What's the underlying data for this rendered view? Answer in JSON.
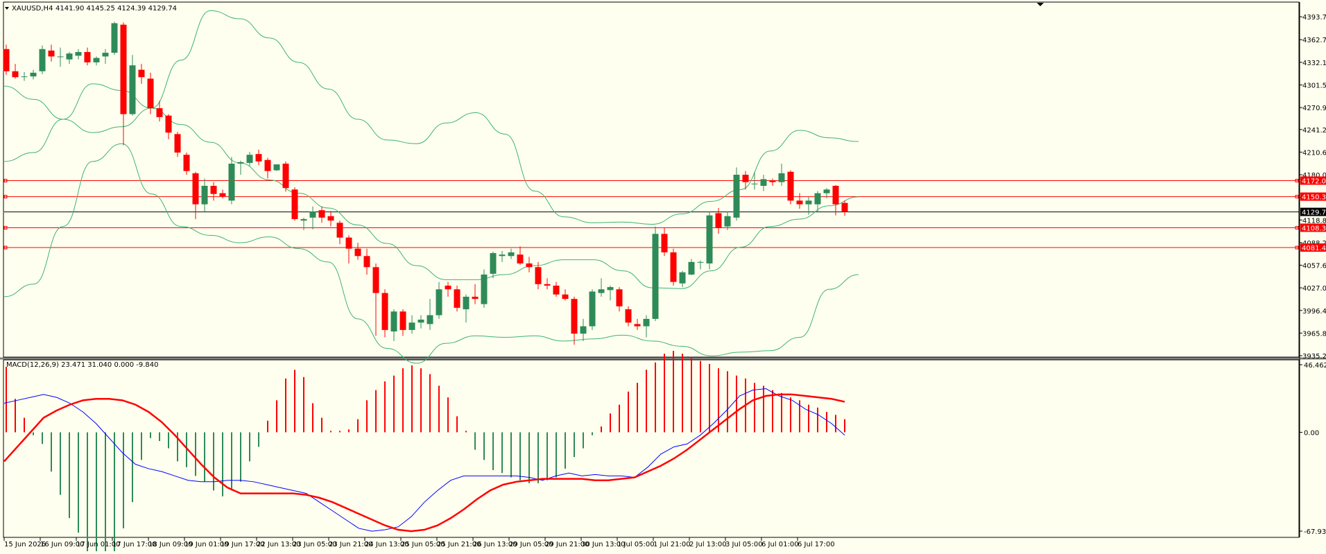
{
  "header": {
    "symbol": "XAUUSD,H4",
    "ohlc": "4141.90 4145.25 4124.39 4129.74",
    "macd_label": "MACD(12,26,9) 23.471 31.040 0.000 -9.840"
  },
  "colors": {
    "background": "#fffff0",
    "bull": "#2e8b57",
    "bear": "#ff0000",
    "bands": "#3cb371",
    "macd_line": "#0000ff",
    "signal_line": "#ff0000",
    "levels": "#ff0000",
    "current_price": "#000000"
  },
  "chart_data": [
    {
      "type": "candlestick",
      "symbol": "XAUUSD",
      "timeframe": "H4",
      "ylim": [
        3935.2,
        4407
      ],
      "y_ticks": [
        "4393.70",
        "4362.70",
        "4332.10",
        "4301.50",
        "4270.90",
        "4241.20",
        "4210.60",
        "4180.00",
        "4149.40",
        "4118.80",
        "4088.20",
        "4057.60",
        "4027.00",
        "3996.40",
        "3965.80",
        "3935.20"
      ],
      "x_ticks": [
        "15 Jun 2026",
        "16 Jun 09:00",
        "17 Jun 01:00",
        "17 Jun 17:00",
        "18 Jun 09:00",
        "19 Jun 01:00",
        "19 Jun 17:00",
        "22 Jun 13:00",
        "23 Jun 05:00",
        "23 Jun 21:00",
        "24 Jun 13:00",
        "25 Jun 05:00",
        "25 Jun 21:00",
        "26 Jun 13:00",
        "29 Jun 05:00",
        "29 Jun 21:00",
        "30 Jun 13:00",
        "1 Jul 05:00",
        "1 Jul 21:00",
        "2 Jul 13:00",
        "3 Jul 05:00",
        "6 Jul 01:00",
        "6 Jul 17:00"
      ],
      "horizontal_levels": [
        {
          "label": "4172.03",
          "value": 4172.03
        },
        {
          "label": "4150.37",
          "value": 4150.37
        },
        {
          "label": "4108.31",
          "value": 4108.31
        },
        {
          "label": "4081.47",
          "value": 4081.47
        }
      ],
      "current_price": {
        "label": "4129.74",
        "value": 4129.74
      },
      "candles": [
        [
          4350,
          4356,
          4315,
          4320
        ],
        [
          4320,
          4330,
          4310,
          4312
        ],
        [
          4313,
          4319,
          4307,
          4313
        ],
        [
          4313,
          4322,
          4309,
          4318
        ],
        [
          4320,
          4355,
          4316,
          4350
        ],
        [
          4348,
          4356,
          4333,
          4340
        ],
        [
          4340,
          4352,
          4326,
          4340
        ],
        [
          4336,
          4346,
          4330,
          4344
        ],
        [
          4341,
          4350,
          4336,
          4346
        ],
        [
          4346,
          4352,
          4328,
          4332
        ],
        [
          4332,
          4340,
          4328,
          4338
        ],
        [
          4340,
          4350,
          4330,
          4345
        ],
        [
          4345,
          4387,
          4342,
          4385
        ],
        [
          4383,
          4386,
          4220,
          4262
        ],
        [
          4262,
          4342,
          4260,
          4328
        ],
        [
          4322,
          4330,
          4303,
          4312
        ],
        [
          4310,
          4318,
          4262,
          4270
        ],
        [
          4270,
          4280,
          4252,
          4258
        ],
        [
          4260,
          4262,
          4228,
          4237
        ],
        [
          4235,
          4238,
          4204,
          4210
        ],
        [
          4207,
          4210,
          4180,
          4185
        ],
        [
          4182,
          4184,
          4120,
          4140
        ],
        [
          4140,
          4175,
          4130,
          4165
        ],
        [
          4165,
          4170,
          4145,
          4154
        ],
        [
          4155,
          4160,
          4148,
          4151
        ],
        [
          4145,
          4204,
          4140,
          4195
        ],
        [
          4195,
          4199,
          4180,
          4197
        ],
        [
          4196,
          4211,
          4192,
          4207
        ],
        [
          4208,
          4214,
          4193,
          4198
        ],
        [
          4200,
          4203,
          4175,
          4185
        ],
        [
          4186,
          4194,
          4185,
          4194
        ],
        [
          4195,
          4198,
          4157,
          4162
        ],
        [
          4160,
          4163,
          4118,
          4120
        ],
        [
          4118,
          4122,
          4105,
          4120
        ],
        [
          4122,
          4137,
          4106,
          4130
        ],
        [
          4132,
          4137,
          4115,
          4122
        ],
        [
          4124,
          4131,
          4110,
          4118
        ],
        [
          4115,
          4118,
          4086,
          4095
        ],
        [
          4095,
          4098,
          4060,
          4080
        ],
        [
          4080,
          4088,
          4065,
          4070
        ],
        [
          4070,
          4080,
          4045,
          4055
        ],
        [
          4055,
          4060,
          3962,
          4020
        ],
        [
          4020,
          4025,
          3960,
          3970
        ],
        [
          3968,
          3998,
          3955,
          3995
        ],
        [
          3995,
          3998,
          3962,
          3970
        ],
        [
          3970,
          3990,
          3965,
          3980
        ],
        [
          3980,
          3990,
          3972,
          3984
        ],
        [
          3978,
          4012,
          3970,
          3990
        ],
        [
          3990,
          4035,
          3985,
          4025
        ],
        [
          4030,
          4035,
          4015,
          4025
        ],
        [
          4025,
          4030,
          3995,
          4000
        ],
        [
          3998,
          4018,
          3980,
          4015
        ],
        [
          4015,
          4032,
          4005,
          4012
        ],
        [
          4005,
          4052,
          4000,
          4045
        ],
        [
          4046,
          4076,
          4040,
          4074
        ],
        [
          4070,
          4077,
          4062,
          4072
        ],
        [
          4070,
          4080,
          4066,
          4075
        ],
        [
          4072,
          4083,
          4058,
          4060
        ],
        [
          4060,
          4069,
          4048,
          4055
        ],
        [
          4055,
          4062,
          4025,
          4032
        ],
        [
          4032,
          4040,
          4025,
          4030
        ],
        [
          4030,
          4035,
          4015,
          4018
        ],
        [
          4018,
          4025,
          4010,
          4012
        ],
        [
          4012,
          4015,
          3950,
          3965
        ],
        [
          3965,
          3985,
          3955,
          3975
        ],
        [
          3975,
          4025,
          3970,
          4022
        ],
        [
          4020,
          4040,
          4015,
          4025
        ],
        [
          4024,
          4030,
          4010,
          4028
        ],
        [
          4025,
          4028,
          3995,
          4002
        ],
        [
          3998,
          4002,
          3975,
          3980
        ],
        [
          3978,
          3985,
          3970,
          3975
        ],
        [
          3975,
          3990,
          3960,
          3985
        ],
        [
          3985,
          4110,
          3982,
          4100
        ],
        [
          4100,
          4108,
          4070,
          4075
        ],
        [
          4075,
          4080,
          4030,
          4035
        ],
        [
          4033,
          4050,
          4028,
          4048
        ],
        [
          4045,
          4066,
          4044,
          4062
        ],
        [
          4062,
          4064,
          4052,
          4062
        ],
        [
          4060,
          4130,
          4052,
          4125
        ],
        [
          4128,
          4135,
          4100,
          4108
        ],
        [
          4110,
          4130,
          4105,
          4124
        ],
        [
          4122,
          4190,
          4118,
          4180
        ],
        [
          4180,
          4185,
          4160,
          4170
        ],
        [
          4168,
          4184,
          4160,
          4168
        ],
        [
          4165,
          4180,
          4158,
          4174
        ],
        [
          4172,
          4175,
          4165,
          4170
        ],
        [
          4170,
          4195,
          4165,
          4182
        ],
        [
          4184,
          4186,
          4140,
          4145
        ],
        [
          4145,
          4155,
          4134,
          4140
        ],
        [
          4140,
          4150,
          4126,
          4145
        ],
        [
          4140,
          4158,
          4130,
          4155
        ],
        [
          4155,
          4162,
          4148,
          4160
        ],
        [
          4165,
          4166,
          4125,
          4140
        ],
        [
          4141.9,
          4145.25,
          4124.39,
          4129.74
        ]
      ],
      "bollinger": {
        "upper": [
          4300,
          4282,
          4255,
          4237,
          4245,
          4270,
          4335,
          4402,
          4391,
          4365,
          4332,
          4296,
          4255,
          4227,
          4222,
          4250,
          4264,
          4235,
          4158,
          4123,
          4115,
          4116,
          4113,
          4127,
          4144,
          4160,
          4212,
          4240,
          4230,
          4225
        ],
        "middle": [
          4198,
          4210,
          4255,
          4303,
          4294,
          4270,
          4248,
          4224,
          4196,
          4173,
          4155,
          4135,
          4112,
          4087,
          4057,
          4038,
          4038,
          4045,
          4057,
          4065,
          4065,
          4050,
          4027,
          4026,
          4050,
          4082,
          4110,
          4120,
          4138,
          4150
        ],
        "lower": [
          4015,
          4032,
          4110,
          4198,
          4222,
          4154,
          4110,
          4098,
          4088,
          4096,
          4080,
          4062,
          3985,
          3945,
          3925,
          3952,
          3962,
          3960,
          3962,
          3955,
          3958,
          3963,
          3955,
          3948,
          3935,
          3940,
          3942,
          3960,
          4025,
          4045
        ]
      }
    },
    {
      "type": "macd",
      "label": "MACD(12,26,9) 23.471 31.040 0.000 -9.840",
      "ylim": [
        -67.933,
        46.462
      ],
      "y_ticks": [
        "46.462",
        "0.00",
        "-67.933"
      ],
      "histogram": [
        45,
        42,
        30,
        23,
        17,
        10,
        5,
        1,
        -2,
        -5,
        -8,
        -12,
        -18,
        -27,
        -37,
        -43,
        -50,
        -55,
        -59,
        -63,
        -69,
        -75,
        -80,
        -85,
        -90,
        -94,
        -95,
        -96,
        -95,
        -92,
        -86,
        -80,
        -73,
        -66,
        -58,
        -48,
        -39,
        -28,
        -19,
        -9,
        -4,
        -2,
        -4,
        -6,
        -8,
        -11,
        -14,
        -17,
        -20,
        -22,
        -24,
        -26,
        -28,
        -30,
        -32,
        -34,
        -36,
        -38,
        -40,
        -42,
        -44,
        -44,
        -42,
        -40,
        -37,
        -34,
        -30,
        -25,
        -20,
        -15,
        -10,
        -5,
        2,
        8,
        15,
        22,
        28,
        33,
        37,
        40,
        42,
        43,
        42,
        38,
        33,
        27,
        20,
        15,
        10,
        5,
        2,
        1,
        1,
        1,
        1,
        1,
        2,
        5,
        9,
        14,
        18,
        22,
        26,
        29,
        31,
        33,
        35,
        37,
        39,
        41,
        43,
        44,
        45,
        46,
        46,
        45,
        44,
        42,
        40,
        38,
        35,
        32,
        28,
        24,
        20,
        16,
        11,
        6,
        1,
        -4,
        -8,
        -12,
        -16,
        -19,
        -22,
        -24,
        -26,
        -27,
        -28,
        -29,
        -30,
        -31,
        -32,
        -33,
        -34,
        -35,
        -35,
        -35,
        -35,
        -35,
        -34,
        -33,
        -32,
        -31,
        -29,
        -27,
        -25,
        -23,
        -20,
        -17,
        -14,
        -11,
        -8,
        -5,
        -2,
        1,
        4,
        7,
        10,
        13,
        16,
        19,
        22,
        25,
        28,
        31,
        34,
        37,
        40,
        43,
        46,
        48,
        50,
        52,
        54,
        55,
        56,
        56,
        55,
        54,
        53,
        52,
        51,
        50,
        49,
        48,
        47,
        46,
        45,
        44,
        43,
        42,
        41,
        40,
        39,
        38,
        37,
        36,
        35,
        34,
        33,
        32,
        31,
        30,
        29,
        28,
        27,
        26,
        25,
        24,
        23,
        22,
        21,
        20,
        19,
        18,
        17,
        16,
        15,
        14,
        13,
        12,
        11,
        10,
        9
      ],
      "macd": [
        20,
        22,
        24,
        26,
        24,
        20,
        14,
        6,
        -4,
        -14,
        -22,
        -25,
        -27,
        -30,
        -33,
        -34,
        -34,
        -33,
        -33,
        -34,
        -36,
        -38,
        -40,
        -42,
        -48,
        -54,
        -60,
        -66,
        -68,
        -67,
        -65,
        -58,
        -48,
        -40,
        -33,
        -30,
        -30,
        -30,
        -30,
        -30,
        -31,
        -33,
        -30,
        -28,
        -30,
        -29,
        -30,
        -30,
        -31,
        -24,
        -15,
        -10,
        -8,
        -2,
        6,
        15,
        25,
        29,
        30,
        25,
        22,
        16,
        12,
        6,
        -2
      ],
      "signal": [
        -20,
        -10,
        0,
        10,
        15,
        19,
        22,
        23,
        23,
        22,
        19,
        14,
        7,
        -2,
        -12,
        -22,
        -31,
        -38,
        -42,
        -42,
        -42,
        -42,
        -42,
        -43,
        -45,
        -48,
        -52,
        -56,
        -60,
        -64,
        -67,
        -68,
        -67,
        -64,
        -59,
        -53,
        -46,
        -40,
        -36,
        -34,
        -33,
        -32,
        -32,
        -32,
        -32,
        -33,
        -33,
        -32,
        -31,
        -27,
        -23,
        -18,
        -12,
        -5,
        2,
        9,
        16,
        22,
        25,
        26,
        26,
        25,
        24,
        23,
        21
      ],
      "signal_plot": []
    }
  ]
}
